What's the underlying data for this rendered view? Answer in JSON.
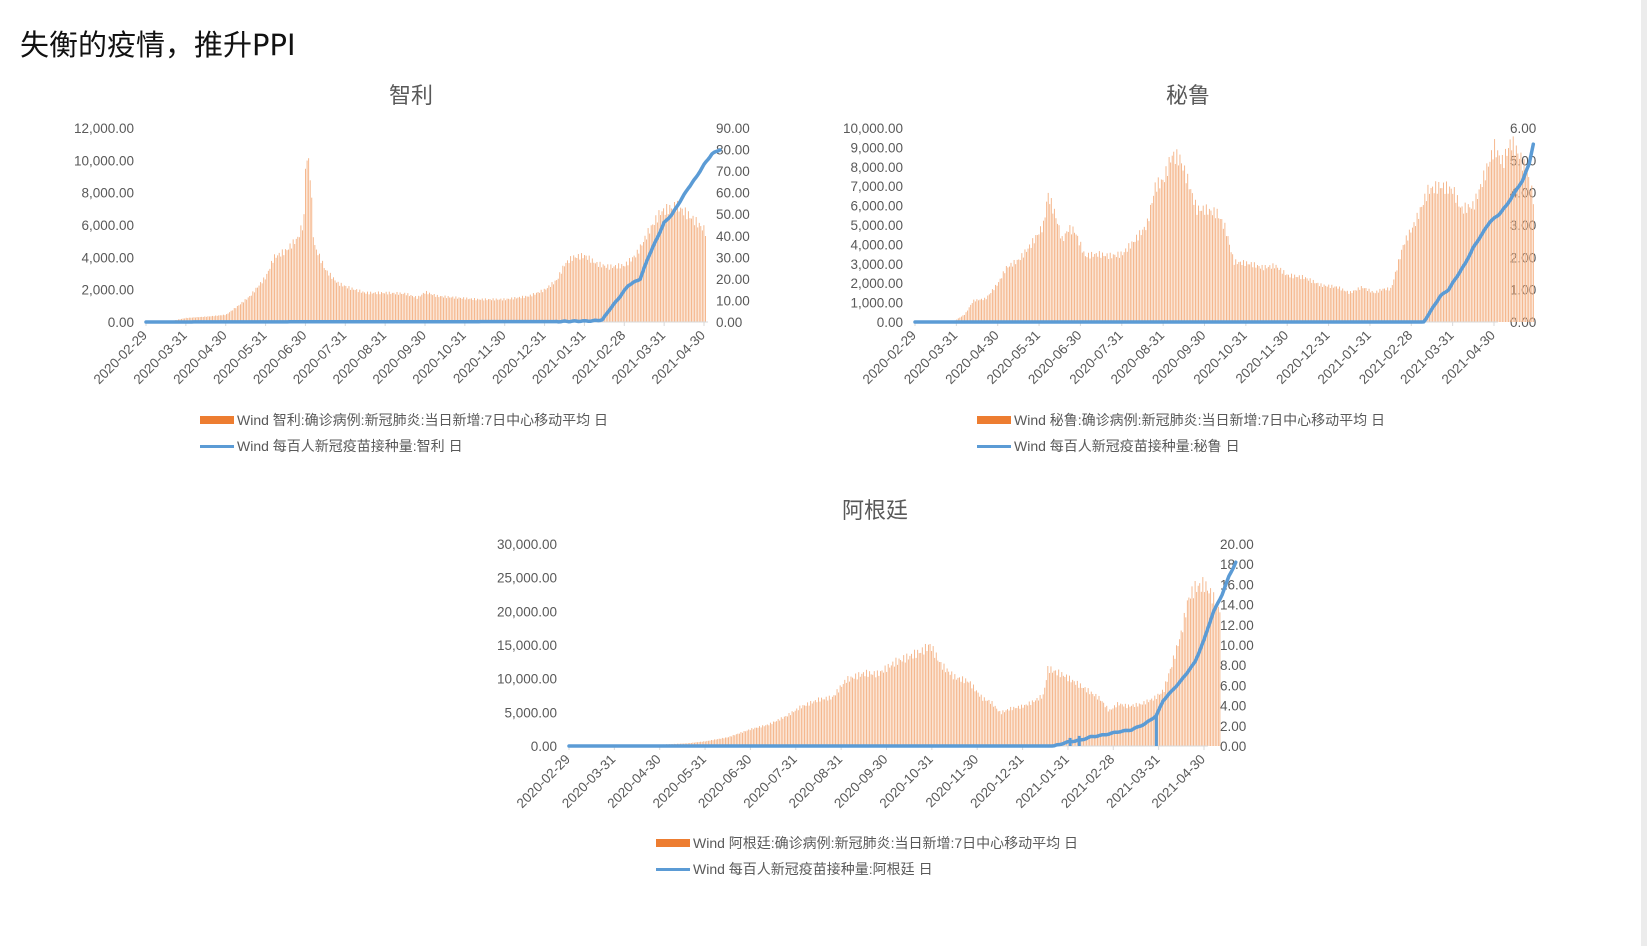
{
  "page": {
    "title": "失衡的疫情，推升PPI"
  },
  "colors": {
    "bar": "#F4B183",
    "bar_legend": "#ED7D31",
    "line": "#5B9BD5",
    "axis_text": "#595959",
    "axis_line": "#D9D9D9"
  },
  "chart_data": [
    {
      "id": "chile",
      "type": "bar+line",
      "title": "智利",
      "x_tick_labels": [
        "2020-02-29",
        "2020-03-31",
        "2020-04-30",
        "2020-05-31",
        "2020-06-30",
        "2020-07-31",
        "2020-08-31",
        "2020-09-30",
        "2020-10-31",
        "2020-11-30",
        "2020-12-31",
        "2021-01-31",
        "2021-02-28",
        "2021-03-31",
        "2021-04-30"
      ],
      "y_left": {
        "min": 0,
        "max": 12000,
        "ticks": [
          "0.00",
          "2,000.00",
          "4,000.00",
          "6,000.00",
          "8,000.00",
          "10,000.00",
          "12,000.00"
        ]
      },
      "y_right": {
        "min": 0,
        "max": 90,
        "ticks": [
          "0.00",
          "10.00",
          "20.00",
          "30.00",
          "40.00",
          "50.00",
          "60.00",
          "70.00",
          "80.00",
          "90.00"
        ]
      },
      "legend": [
        "Wind 智利:确诊病例:新冠肺炎:当日新增:7日中心移动平均 日",
        "Wind 每百人新冠疫苗接种量:智利 日"
      ],
      "series": [
        {
          "name": "Wind 智利:确诊病例:新冠肺炎:当日新增:7日中心移动平均 日",
          "type": "bar",
          "axis": "left",
          "points_month_index_value": [
            [
              0,
              0
            ],
            [
              0.7,
              100
            ],
            [
              1,
              250
            ],
            [
              1.6,
              350
            ],
            [
              2,
              450
            ],
            [
              2.3,
              1000
            ],
            [
              2.6,
              1600
            ],
            [
              3,
              2800
            ],
            [
              3.2,
              4000
            ],
            [
              3.5,
              4400
            ],
            [
              3.8,
              5200
            ],
            [
              3.95,
              6200
            ],
            [
              4.0,
              10300
            ],
            [
              4.1,
              9600
            ],
            [
              4.2,
              4800
            ],
            [
              4.5,
              3200
            ],
            [
              4.8,
              2400
            ],
            [
              5.1,
              2100
            ],
            [
              5.5,
              1800
            ],
            [
              6,
              1800
            ],
            [
              6.5,
              1750
            ],
            [
              6.8,
              1500
            ],
            [
              7,
              1850
            ],
            [
              7.3,
              1600
            ],
            [
              7.8,
              1500
            ],
            [
              8.3,
              1400
            ],
            [
              9,
              1400
            ],
            [
              9.6,
              1600
            ],
            [
              10,
              2000
            ],
            [
              10.3,
              2600
            ],
            [
              10.5,
              3600
            ],
            [
              10.7,
              4000
            ],
            [
              11,
              4100
            ],
            [
              11.3,
              3600
            ],
            [
              11.6,
              3400
            ],
            [
              12,
              3500
            ],
            [
              12.3,
              4200
            ],
            [
              12.6,
              5600
            ],
            [
              12.9,
              6800
            ],
            [
              13.3,
              7200
            ],
            [
              13.7,
              6400
            ],
            [
              14.0,
              5700
            ],
            [
              14.05,
              5500
            ]
          ]
        },
        {
          "name": "Wind 每百人新冠疫苗接种量:智利 日",
          "type": "line",
          "axis": "right",
          "points_month_index_value": [
            [
              0,
              0
            ],
            [
              10.3,
              0.2
            ],
            [
              11.2,
              0.5
            ],
            [
              11.45,
              1
            ],
            [
              11.6,
              5
            ],
            [
              11.9,
              12
            ],
            [
              12.1,
              17
            ],
            [
              12.4,
              20
            ],
            [
              12.6,
              30
            ],
            [
              12.8,
              38
            ],
            [
              13.0,
              46
            ],
            [
              13.2,
              50
            ],
            [
              13.4,
              56
            ],
            [
              13.6,
              62
            ],
            [
              13.8,
              67
            ],
            [
              14.0,
              73
            ],
            [
              14.2,
              78
            ],
            [
              14.4,
              80
            ]
          ]
        }
      ]
    },
    {
      "id": "peru",
      "type": "bar+line",
      "title": "秘鲁",
      "x_tick_labels": [
        "2020-02-29",
        "2020-03-31",
        "2020-04-30",
        "2020-05-31",
        "2020-06-30",
        "2020-07-31",
        "2020-08-31",
        "2020-09-30",
        "2020-10-31",
        "2020-11-30",
        "2020-12-31",
        "2021-01-31",
        "2021-02-28",
        "2021-03-31",
        "2021-04-30"
      ],
      "y_left": {
        "min": 0,
        "max": 10000,
        "ticks": [
          "0.00",
          "1,000.00",
          "2,000.00",
          "3,000.00",
          "4,000.00",
          "5,000.00",
          "6,000.00",
          "7,000.00",
          "8,000.00",
          "9,000.00",
          "10,000.00"
        ]
      },
      "y_right": {
        "min": 0,
        "max": 6,
        "ticks": [
          "0.00",
          "1.00",
          "2.00",
          "3.00",
          "4.00",
          "5.00",
          "6.00"
        ]
      },
      "legend": [
        "Wind 秘鲁:确诊病例:新冠肺炎:当日新增:7日中心移动平均 日",
        "Wind 每百人新冠疫苗接种量:秘鲁 日"
      ],
      "series": [
        {
          "name": "Wind 秘鲁:确诊病例:新冠肺炎:当日新增:7日中心移动平均 日",
          "type": "bar",
          "axis": "left",
          "points_month_index_value": [
            [
              0,
              0
            ],
            [
              0.9,
              0
            ],
            [
              1.2,
              400
            ],
            [
              1.4,
              1100
            ],
            [
              1.7,
              1200
            ],
            [
              2,
              2000
            ],
            [
              2.2,
              2800
            ],
            [
              2.5,
              3200
            ],
            [
              2.8,
              4000
            ],
            [
              3.1,
              5000
            ],
            [
              3.2,
              6600
            ],
            [
              3.4,
              5400
            ],
            [
              3.55,
              4200
            ],
            [
              3.7,
              4800
            ],
            [
              3.85,
              4700
            ],
            [
              4.1,
              3400
            ],
            [
              4.4,
              3500
            ],
            [
              4.7,
              3400
            ],
            [
              5,
              3500
            ],
            [
              5.3,
              4200
            ],
            [
              5.6,
              5000
            ],
            [
              5.8,
              7000
            ],
            [
              6.0,
              7300
            ],
            [
              6.2,
              8600
            ],
            [
              6.4,
              8400
            ],
            [
              6.6,
              7200
            ],
            [
              6.8,
              5800
            ],
            [
              7,
              5800
            ],
            [
              7.3,
              5600
            ],
            [
              7.5,
              4800
            ],
            [
              7.7,
              3100
            ],
            [
              8.1,
              3000
            ],
            [
              8.4,
              2800
            ],
            [
              8.7,
              2900
            ],
            [
              9,
              2400
            ],
            [
              9.4,
              2300
            ],
            [
              9.8,
              1900
            ],
            [
              10.2,
              1800
            ],
            [
              10.5,
              1500
            ],
            [
              10.8,
              1800
            ],
            [
              11.1,
              1500
            ],
            [
              11.3,
              1700
            ],
            [
              11.5,
              1700
            ],
            [
              11.8,
              4000
            ],
            [
              12.1,
              5200
            ],
            [
              12.4,
              6800
            ],
            [
              12.7,
              7000
            ],
            [
              13,
              6800
            ],
            [
              13.2,
              5800
            ],
            [
              13.5,
              6000
            ],
            [
              13.8,
              7800
            ],
            [
              14.0,
              9000
            ],
            [
              14.2,
              8200
            ],
            [
              14.4,
              9300
            ],
            [
              14.6,
              8600
            ],
            [
              14.8,
              7600
            ],
            [
              14.95,
              6300
            ]
          ]
        },
        {
          "name": "Wind 每百人新冠疫苗接种量:秘鲁 日",
          "type": "line",
          "axis": "right",
          "points_month_index_value": [
            [
              0,
              0
            ],
            [
              12.3,
              0
            ],
            [
              12.5,
              0.4
            ],
            [
              12.7,
              0.8
            ],
            [
              12.9,
              1.0
            ],
            [
              13.1,
              1.4
            ],
            [
              13.3,
              1.8
            ],
            [
              13.5,
              2.3
            ],
            [
              13.7,
              2.7
            ],
            [
              13.9,
              3.1
            ],
            [
              14.1,
              3.3
            ],
            [
              14.3,
              3.6
            ],
            [
              14.5,
              4.0
            ],
            [
              14.7,
              4.4
            ],
            [
              14.85,
              4.9
            ],
            [
              14.95,
              5.5
            ]
          ]
        }
      ]
    },
    {
      "id": "argentina",
      "type": "bar+line",
      "title": "阿根廷",
      "x_tick_labels": [
        "2020-02-29",
        "2020-03-31",
        "2020-04-30",
        "2020-05-31",
        "2020-06-30",
        "2020-07-31",
        "2020-08-31",
        "2020-09-30",
        "2020-10-31",
        "2020-11-30",
        "2020-12-31",
        "2021-01-31",
        "2021-02-28",
        "2021-03-31",
        "2021-04-30"
      ],
      "y_left": {
        "min": 0,
        "max": 30000,
        "ticks": [
          "0.00",
          "5,000.00",
          "10,000.00",
          "15,000.00",
          "20,000.00",
          "25,000.00",
          "30,000.00"
        ]
      },
      "y_right": {
        "min": 0,
        "max": 20,
        "ticks": [
          "0.00",
          "2.00",
          "4.00",
          "6.00",
          "8.00",
          "10.00",
          "12.00",
          "14.00",
          "16.00",
          "18.00",
          "20.00"
        ]
      },
      "legend": [
        "Wind 阿根廷:确诊病例:新冠肺炎:当日新增:7日中心移动平均 日",
        "Wind 每百人新冠疫苗接种量:阿根廷 日"
      ],
      "series": [
        {
          "name": "Wind 阿根廷:确诊病例:新冠肺炎:当日新增:7日中心移动平均 日",
          "type": "bar",
          "axis": "left",
          "points_month_index_value": [
            [
              0,
              0
            ],
            [
              1,
              100
            ],
            [
              2,
              200
            ],
            [
              2.6,
              400
            ],
            [
              3,
              700
            ],
            [
              3.5,
              1300
            ],
            [
              4,
              2500
            ],
            [
              4.4,
              3200
            ],
            [
              4.8,
              4500
            ],
            [
              5.1,
              5800
            ],
            [
              5.5,
              6900
            ],
            [
              5.8,
              7200
            ],
            [
              6.1,
              9800
            ],
            [
              6.5,
              10800
            ],
            [
              6.8,
              10700
            ],
            [
              7.2,
              12500
            ],
            [
              7.5,
              13300
            ],
            [
              7.8,
              14200
            ],
            [
              7.95,
              15000
            ],
            [
              8.2,
              12000
            ],
            [
              8.5,
              10200
            ],
            [
              8.8,
              9600
            ],
            [
              9.1,
              7100
            ],
            [
              9.3,
              6500
            ],
            [
              9.5,
              4900
            ],
            [
              9.7,
              5500
            ],
            [
              10,
              5900
            ],
            [
              10.2,
              6500
            ],
            [
              10.45,
              7500
            ],
            [
              10.55,
              11500
            ],
            [
              10.9,
              10500
            ],
            [
              11.3,
              8800
            ],
            [
              11.7,
              7000
            ],
            [
              11.9,
              5200
            ],
            [
              12.1,
              6300
            ],
            [
              12.3,
              5900
            ],
            [
              12.6,
              6200
            ],
            [
              12.9,
              7100
            ],
            [
              13.1,
              8200
            ],
            [
              13.3,
              12500
            ],
            [
              13.5,
              17000
            ],
            [
              13.65,
              22000
            ],
            [
              13.8,
              23500
            ],
            [
              14.0,
              24000
            ],
            [
              14.15,
              22500
            ],
            [
              14.3,
              20500
            ],
            [
              14.35,
              20500
            ]
          ]
        },
        {
          "name": "Wind 每百人新冠疫苗接种量:阿根廷 日",
          "type": "line",
          "axis": "right",
          "points_month_index_value": [
            [
              0,
              0
            ],
            [
              10.7,
              0
            ],
            [
              11.0,
              0.4
            ],
            [
              11.3,
              0.6
            ],
            [
              11.5,
              0.9
            ],
            [
              11.8,
              1.1
            ],
            [
              12.1,
              1.4
            ],
            [
              12.4,
              1.6
            ],
            [
              12.7,
              2.2
            ],
            [
              12.95,
              3.0
            ],
            [
              13.1,
              4.5
            ],
            [
              13.3,
              5.5
            ],
            [
              13.5,
              6.5
            ],
            [
              13.8,
              8.3
            ],
            [
              14.0,
              10.5
            ],
            [
              14.2,
              13.2
            ],
            [
              14.4,
              15.0
            ],
            [
              14.55,
              16.8
            ],
            [
              14.65,
              17.7
            ],
            [
              14.7,
              18.2
            ]
          ]
        }
      ]
    }
  ]
}
